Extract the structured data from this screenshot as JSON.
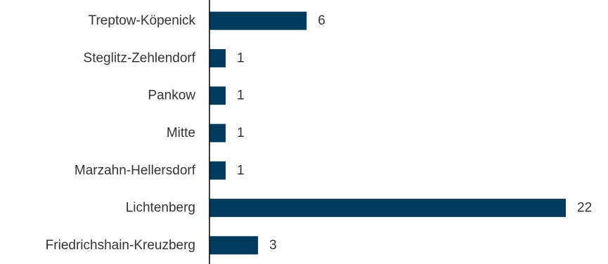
{
  "chart_data": {
    "type": "bar",
    "orientation": "horizontal",
    "categories": [
      "Treptow-Köpenick",
      "Steglitz-Zehlendorf",
      "Pankow",
      "Mitte",
      "Marzahn-Hellersdorf",
      "Lichtenberg",
      "Friedrichshain-Kreuzberg"
    ],
    "values": [
      6,
      1,
      1,
      1,
      1,
      22,
      3
    ],
    "xlim": [
      0,
      22
    ],
    "grid": false,
    "legend": "none",
    "bar_color": "#003a5c",
    "axis_color": "#000000",
    "text_color": "#333333"
  }
}
